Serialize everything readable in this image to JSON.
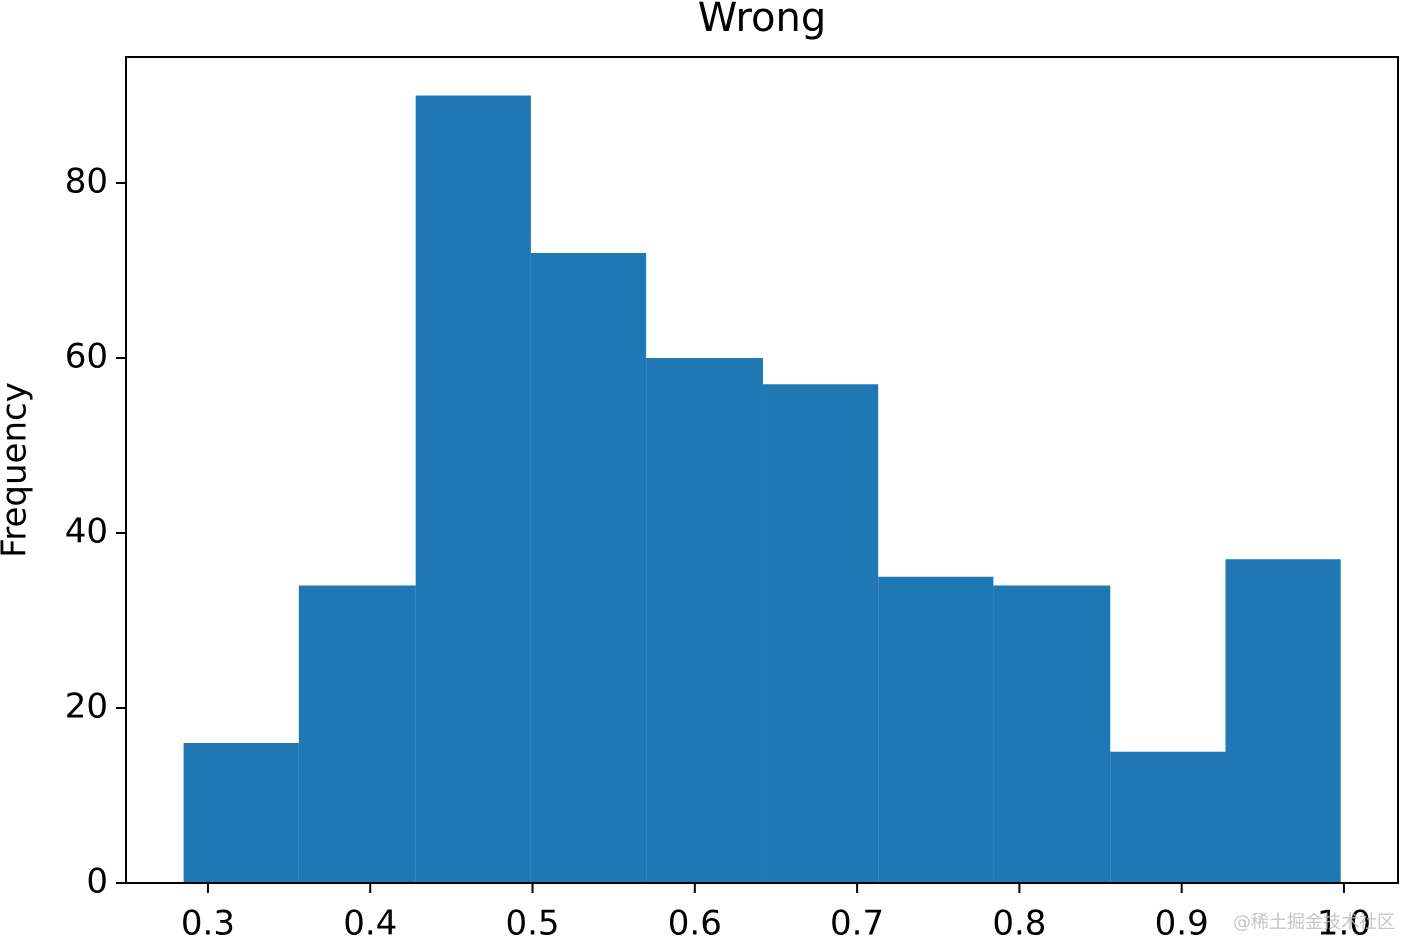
{
  "chart_data": {
    "type": "histogram",
    "title": "Wrong",
    "ylabel": "Frequency",
    "bins": [
      0.285,
      0.356,
      0.428,
      0.499,
      0.57,
      0.642,
      0.713,
      0.784,
      0.856,
      0.927,
      0.998
    ],
    "values": [
      16,
      34,
      90,
      72,
      60,
      57,
      35,
      34,
      15,
      37
    ],
    "color": "#1f77b4",
    "xlim": [
      0.2495,
      1.0333
    ],
    "xticks": [
      0.3,
      0.4,
      0.5,
      0.6,
      0.7,
      0.8,
      0.9,
      {
        "value": 1,
        "label": "1.0"
      }
    ],
    "ylim": [
      0,
      94.4
    ],
    "yticks": [
      0,
      20,
      40,
      60,
      80
    ],
    "watermark": "@稀土掘金技术社区"
  }
}
